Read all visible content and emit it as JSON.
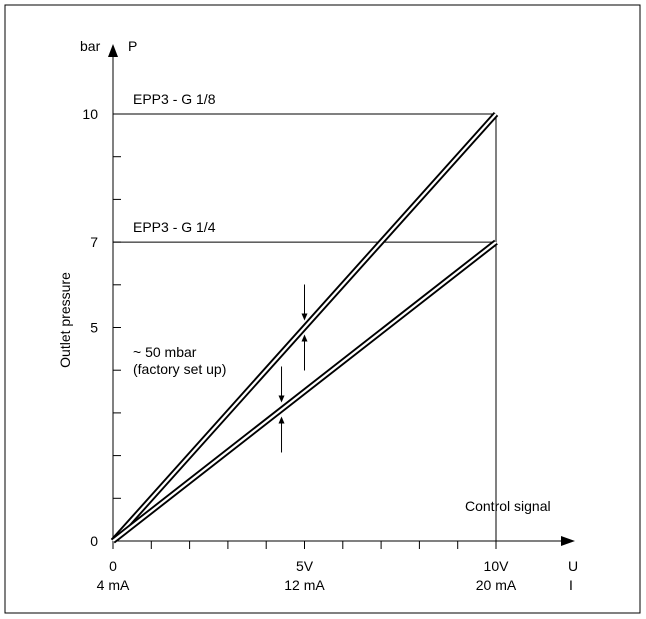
{
  "chart_data": {
    "type": "line",
    "ylabel": "Outlet pressure",
    "y_unit": "bar",
    "y_symbol": "P",
    "x_symbol_voltage": "U",
    "x_symbol_current": "I",
    "x_axis_caption": "Control signal",
    "ylim": [
      0,
      10
    ],
    "y_ticks": [
      {
        "value": 0,
        "label": "0"
      },
      {
        "value": 5,
        "label": "5"
      },
      {
        "value": 7,
        "label": "7"
      },
      {
        "value": 10,
        "label": "10"
      }
    ],
    "y_minor_ticks": [
      1,
      2,
      3,
      4,
      6,
      8,
      9
    ],
    "xlim": [
      0,
      10
    ],
    "x_ticks": [
      {
        "value": 0,
        "voltage": "0",
        "current": "4 mA"
      },
      {
        "value": 5,
        "voltage": "5V",
        "current": "12 mA"
      },
      {
        "value": 10,
        "voltage": "10V",
        "current": "20 mA"
      }
    ],
    "x_minor_ticks": [
      1,
      2,
      3,
      4,
      6,
      7,
      8,
      9
    ],
    "series": [
      {
        "name": "EPP3 - G 1/8",
        "x": [
          0,
          10
        ],
        "y": [
          0,
          10
        ]
      },
      {
        "name": "EPP3 - G 1/4",
        "x": [
          0,
          10
        ],
        "y": [
          0,
          7
        ]
      }
    ],
    "annotation": {
      "line1": "~ 50 mbar",
      "line2": "(factory set up)"
    }
  }
}
